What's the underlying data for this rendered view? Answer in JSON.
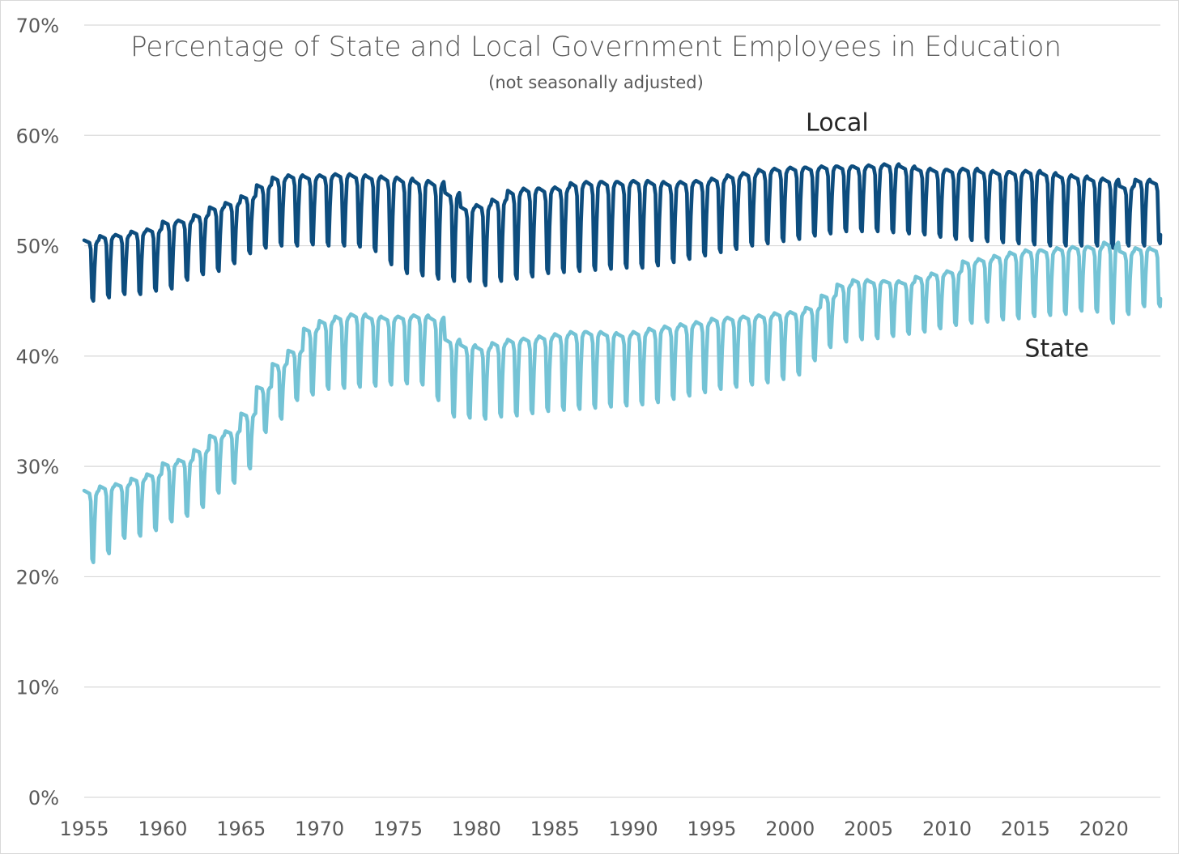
{
  "chart_data": {
    "type": "line",
    "title": "Percentage of State and Local Government Employees in Education",
    "subtitle": "(not seasonally adjusted)",
    "xlabel": "",
    "ylabel": "",
    "ylim": [
      0,
      70
    ],
    "xlim": [
      1955,
      2023.6
    ],
    "y_ticks": [
      0,
      10,
      20,
      30,
      40,
      50,
      60,
      70
    ],
    "y_tick_labels": [
      "0%",
      "10%",
      "20%",
      "30%",
      "40%",
      "50%",
      "60%",
      "70%"
    ],
    "x_ticks": [
      1955,
      1960,
      1965,
      1970,
      1975,
      1980,
      1985,
      1990,
      1995,
      2000,
      2005,
      2010,
      2015,
      2020
    ],
    "x_tick_labels": [
      "1955",
      "1960",
      "1965",
      "1970",
      "1975",
      "1980",
      "1985",
      "1990",
      "1995",
      "2000",
      "2005",
      "2010",
      "2015",
      "2020"
    ],
    "grid": "horizontal",
    "legend": "none",
    "frequency": "monthly, annual values shown as school-year peak and summer trough",
    "series": [
      {
        "name": "Local",
        "color": "#0d4d7e",
        "label_at": [
          2003,
          60
        ],
        "years": [
          1955,
          1956,
          1957,
          1958,
          1959,
          1960,
          1961,
          1962,
          1963,
          1964,
          1965,
          1966,
          1967,
          1968,
          1969,
          1970,
          1971,
          1972,
          1973,
          1974,
          1975,
          1976,
          1977,
          1978,
          1979,
          1980,
          1981,
          1982,
          1983,
          1984,
          1985,
          1986,
          1987,
          1988,
          1989,
          1990,
          1991,
          1992,
          1993,
          1994,
          1995,
          1996,
          1997,
          1998,
          1999,
          2000,
          2001,
          2002,
          2003,
          2004,
          2005,
          2006,
          2007,
          2008,
          2009,
          2010,
          2011,
          2012,
          2013,
          2014,
          2015,
          2016,
          2017,
          2018,
          2019,
          2020,
          2021,
          2022,
          2023
        ],
        "peak": [
          50.5,
          50.9,
          51.0,
          51.3,
          51.5,
          52.2,
          52.3,
          52.8,
          53.5,
          53.9,
          54.5,
          55.5,
          56.2,
          56.4,
          56.3,
          56.4,
          56.5,
          56.4,
          56.3,
          56.2,
          56.1,
          55.9,
          55.8,
          54.8,
          53.5,
          53.7,
          54.2,
          55.0,
          55.2,
          55.2,
          55.3,
          55.7,
          55.8,
          55.8,
          55.8,
          55.9,
          55.8,
          55.7,
          55.8,
          55.9,
          56.1,
          56.4,
          56.6,
          56.9,
          57.0,
          57.1,
          57.1,
          57.2,
          57.2,
          57.2,
          57.3,
          57.4,
          57.2,
          57.0,
          56.9,
          56.9,
          57.0,
          56.8,
          56.7,
          56.7,
          56.8,
          56.6,
          56.4,
          56.3,
          56.1,
          56.0,
          55.4,
          56.0,
          55.8
        ],
        "trough": [
          45.0,
          45.3,
          45.6,
          45.6,
          45.9,
          46.1,
          46.9,
          47.4,
          47.7,
          48.4,
          49.3,
          49.8,
          50.0,
          50.0,
          50.1,
          50.0,
          50.0,
          49.9,
          49.5,
          48.3,
          47.5,
          47.3,
          47.0,
          46.8,
          46.8,
          46.4,
          46.8,
          47.0,
          47.2,
          47.5,
          47.6,
          47.7,
          47.8,
          47.9,
          48.0,
          48.0,
          48.2,
          48.5,
          48.8,
          49.1,
          49.4,
          49.7,
          50.0,
          50.2,
          50.4,
          50.6,
          50.9,
          51.1,
          51.3,
          51.3,
          51.3,
          51.2,
          51.1,
          51.0,
          50.8,
          50.6,
          50.5,
          50.4,
          50.3,
          50.2,
          50.1,
          50.0,
          50.0,
          50.0,
          50.0,
          49.8,
          50.0,
          50.0,
          50.2
        ],
        "last_value": 51.0
      },
      {
        "name": "State",
        "color": "#74c3d5",
        "label_at": [
          2017,
          39.5
        ],
        "years": [
          1955,
          1956,
          1957,
          1958,
          1959,
          1960,
          1961,
          1962,
          1963,
          1964,
          1965,
          1966,
          1967,
          1968,
          1969,
          1970,
          1971,
          1972,
          1973,
          1974,
          1975,
          1976,
          1977,
          1978,
          1979,
          1980,
          1981,
          1982,
          1983,
          1984,
          1985,
          1986,
          1987,
          1988,
          1989,
          1990,
          1991,
          1992,
          1993,
          1994,
          1995,
          1996,
          1997,
          1998,
          1999,
          2000,
          2001,
          2002,
          2003,
          2004,
          2005,
          2006,
          2007,
          2008,
          2009,
          2010,
          2011,
          2012,
          2013,
          2014,
          2015,
          2016,
          2017,
          2018,
          2019,
          2020,
          2021,
          2022,
          2023
        ],
        "peak": [
          27.8,
          28.2,
          28.4,
          28.9,
          29.3,
          30.3,
          30.6,
          31.5,
          32.8,
          33.2,
          34.8,
          37.2,
          39.3,
          40.5,
          42.5,
          43.2,
          43.6,
          43.8,
          43.6,
          43.5,
          43.6,
          43.7,
          43.5,
          41.5,
          41.0,
          40.8,
          41.2,
          41.5,
          41.6,
          41.8,
          42.0,
          42.2,
          42.2,
          42.1,
          42.0,
          42.2,
          42.5,
          42.7,
          42.9,
          43.1,
          43.4,
          43.5,
          43.6,
          43.7,
          43.9,
          44.0,
          44.4,
          45.5,
          46.5,
          46.9,
          46.8,
          46.8,
          46.7,
          47.2,
          47.5,
          47.7,
          48.6,
          48.8,
          49.1,
          49.4,
          49.6,
          49.6,
          49.8,
          49.9,
          49.9,
          50.3,
          49.5,
          49.8,
          49.7
        ],
        "trough": [
          21.3,
          22.1,
          23.5,
          23.7,
          24.2,
          25.0,
          25.5,
          26.3,
          27.6,
          28.5,
          29.8,
          33.1,
          34.3,
          36.0,
          36.5,
          37.0,
          37.1,
          37.2,
          37.3,
          37.4,
          37.5,
          37.4,
          36.0,
          34.5,
          34.4,
          34.3,
          34.5,
          34.6,
          34.8,
          35.0,
          35.1,
          35.2,
          35.3,
          35.4,
          35.5,
          35.6,
          35.8,
          36.1,
          36.4,
          36.7,
          37.0,
          37.2,
          37.4,
          37.6,
          37.9,
          38.3,
          39.6,
          40.8,
          41.3,
          41.5,
          41.6,
          41.8,
          42.0,
          42.2,
          42.5,
          42.8,
          43.0,
          43.1,
          43.3,
          43.4,
          43.6,
          43.7,
          43.8,
          44.1,
          44.0,
          43.0,
          43.8,
          44.5,
          44.5
        ],
        "last_value": 45.2
      }
    ]
  }
}
